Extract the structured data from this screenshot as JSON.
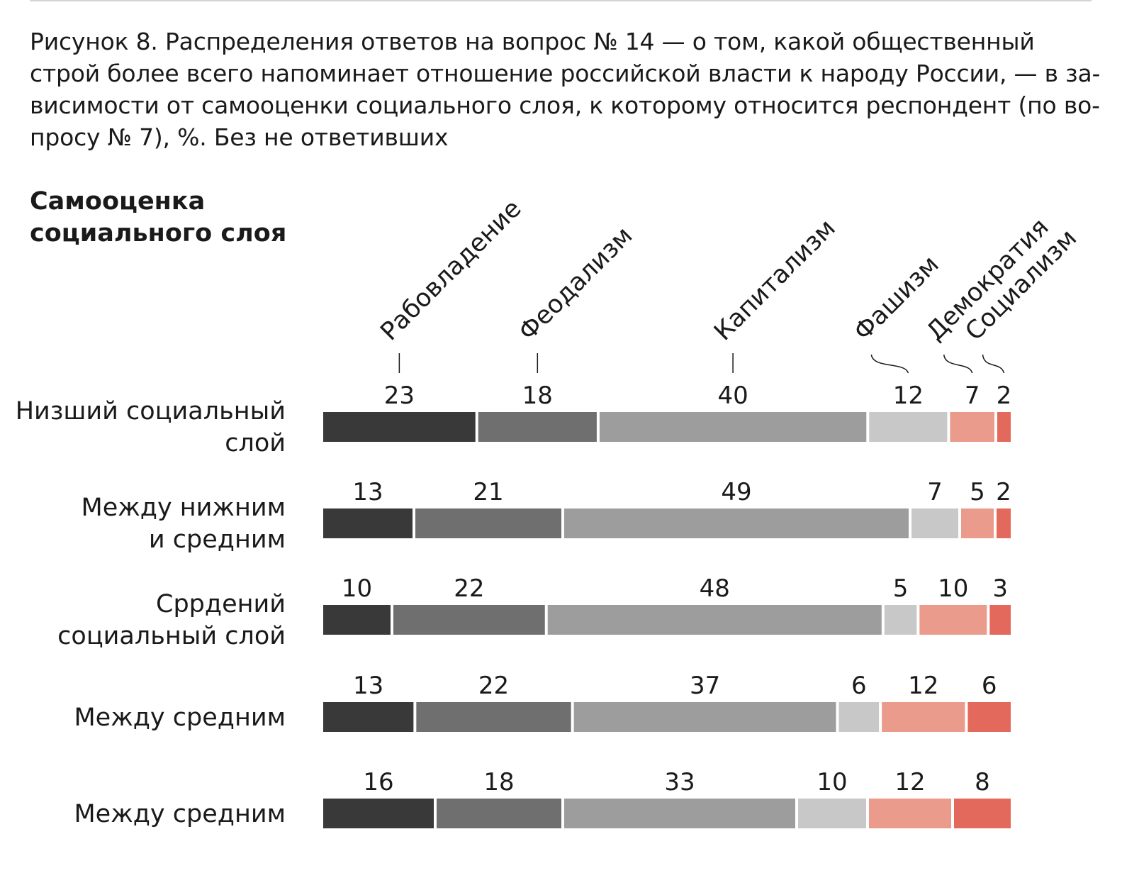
{
  "caption_lines": [
    "Рисунок 8. Распределения ответов на вопрос № 14 — о том, какой общественный",
    "строй более всего напоминает отношение российской власти к народу России, — в за-",
    "висимости от самооценки социального слоя, к которому относится респондент (по во-",
    "просу № 7), %. Без не ответивших"
  ],
  "row_title_lines": [
    "Самооценка",
    "социального слоя"
  ],
  "chart_data": {
    "type": "bar",
    "orientation": "horizontal",
    "stacked": true,
    "unit": "%",
    "xlim": [
      0,
      100
    ],
    "legend_placement": "top",
    "categories": [
      [
        "Низший социальный",
        "слой"
      ],
      [
        "Между нижним",
        "и средним"
      ],
      [
        "Сррдений",
        "социальный слой"
      ],
      [
        "Между средним"
      ],
      [
        "Между средним"
      ]
    ],
    "series": [
      {
        "name": "Рабовладение",
        "color": "#393939",
        "values": [
          23,
          13,
          10,
          13,
          16
        ]
      },
      {
        "name": "Феодализм",
        "color": "#6f6f6f",
        "values": [
          18,
          21,
          22,
          22,
          18
        ]
      },
      {
        "name": "Капитализм",
        "color": "#9d9d9d",
        "values": [
          40,
          49,
          48,
          37,
          33
        ]
      },
      {
        "name": "Фашизм",
        "color": "#c8c8c8",
        "values": [
          12,
          7,
          5,
          6,
          10
        ]
      },
      {
        "name": "Демократия",
        "color": "#eb9b8c",
        "values": [
          7,
          5,
          10,
          12,
          12
        ]
      },
      {
        "name": "Социализм",
        "color": "#e2695c",
        "values": [
          2,
          2,
          3,
          6,
          8
        ]
      }
    ]
  }
}
